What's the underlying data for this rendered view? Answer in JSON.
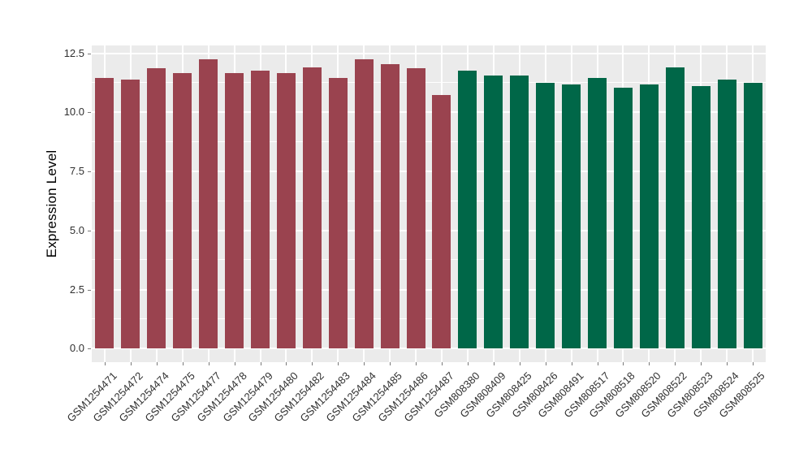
{
  "chart_data": {
    "type": "bar",
    "title": "",
    "xlabel": "",
    "ylabel": "Expression Level",
    "ylim": [
      -0.57,
      12.83
    ],
    "ytick_values": [
      0,
      2.5,
      5,
      7.5,
      10,
      12.5
    ],
    "ytick_labels": [
      "0.0",
      "2.5",
      "5.0",
      "7.5",
      "10.0",
      "12.5"
    ],
    "yticks_minor": [
      1.25,
      3.75,
      6.25,
      8.75,
      11.25
    ],
    "grid": "white major and minor horizontal lines plus vertical line per category on grey panel",
    "legend_position": "none",
    "colors": {
      "panel_bg": "#EBEBEB",
      "grid": "#FFFFFF",
      "group1": "#9A434F",
      "group2": "#006748",
      "tick_text": "#303030",
      "axis_title": "#000000"
    },
    "categories": [
      "GSM1254471",
      "GSM1254472",
      "GSM1254474",
      "GSM1254475",
      "GSM1254477",
      "GSM1254478",
      "GSM1254479",
      "GSM1254480",
      "GSM1254482",
      "GSM1254483",
      "GSM1254484",
      "GSM1254485",
      "GSM1254486",
      "GSM1254487",
      "GSM808380",
      "GSM808409",
      "GSM808425",
      "GSM808426",
      "GSM808491",
      "GSM808517",
      "GSM808518",
      "GSM808520",
      "GSM808522",
      "GSM808523",
      "GSM808524",
      "GSM808525"
    ],
    "values": [
      11.44,
      11.4,
      11.88,
      11.65,
      12.23,
      11.67,
      11.78,
      11.67,
      11.92,
      11.47,
      12.23,
      12.05,
      11.87,
      10.72,
      11.75,
      11.55,
      11.57,
      11.26,
      11.17,
      11.45,
      11.03,
      11.17,
      11.9,
      11.12,
      11.38,
      11.24
    ],
    "groups": [
      1,
      1,
      1,
      1,
      1,
      1,
      1,
      1,
      1,
      1,
      1,
      1,
      1,
      1,
      2,
      2,
      2,
      2,
      2,
      2,
      2,
      2,
      2,
      2,
      2,
      2
    ]
  }
}
